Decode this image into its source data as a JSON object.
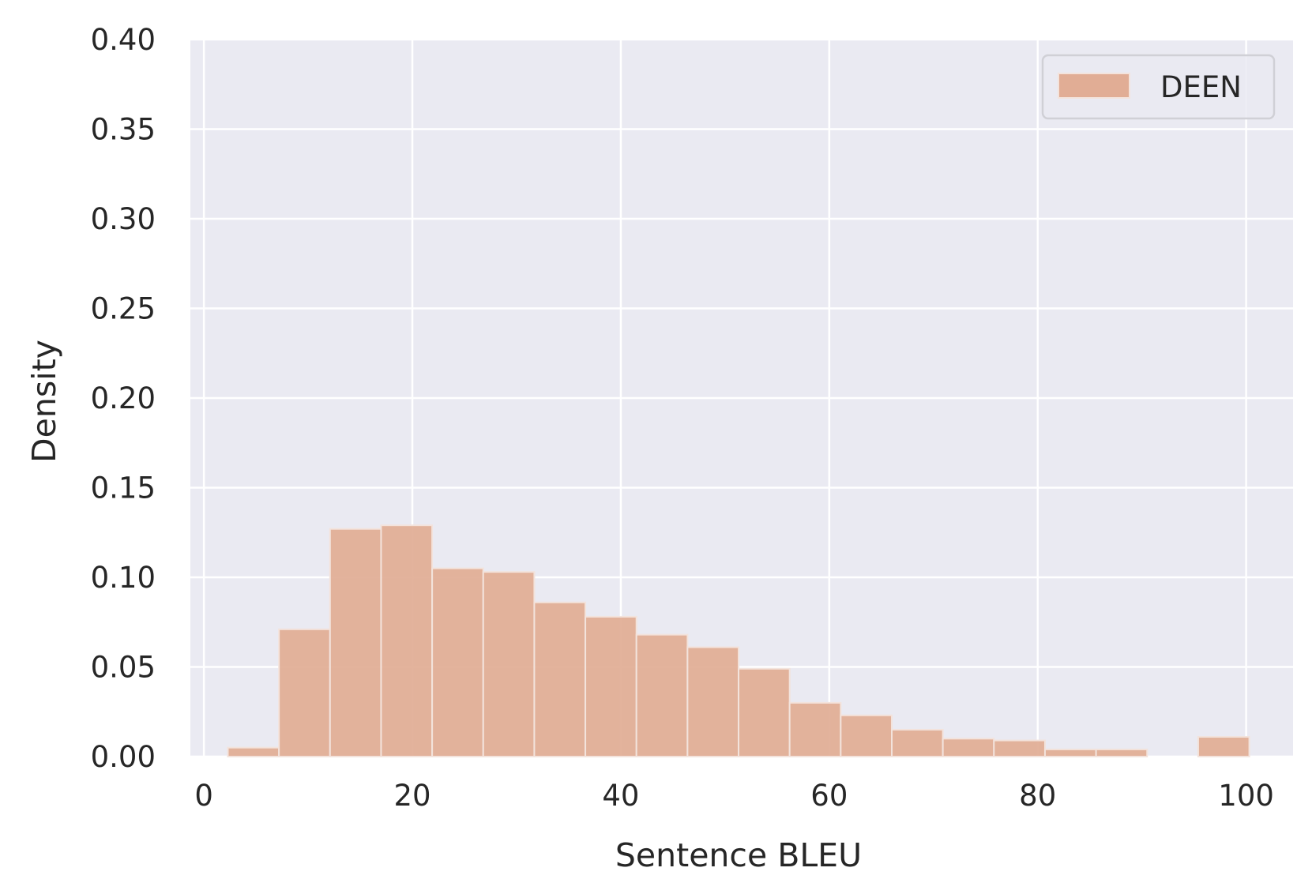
{
  "chart_data": {
    "type": "bar",
    "subtype": "histogram",
    "xlabel": "Sentence BLEU",
    "ylabel": "Density",
    "xlim": [
      -1.3,
      104.5
    ],
    "ylim": [
      0,
      0.4
    ],
    "xticks": [
      0,
      20,
      40,
      60,
      80,
      100
    ],
    "yticks": [
      0,
      0.05,
      0.1,
      0.15,
      0.2,
      0.25,
      0.3,
      0.35,
      0.4
    ],
    "xtick_labels": [
      "0",
      "20",
      "40",
      "60",
      "80",
      "100"
    ],
    "ytick_labels": [
      "0.00",
      "0.05",
      "0.10",
      "0.15",
      "0.20",
      "0.25",
      "0.30",
      "0.35",
      "0.40"
    ],
    "grid": true,
    "background": "#eaeaf2",
    "legend": {
      "position": "top-right",
      "entries": [
        "DEEN"
      ]
    },
    "series": [
      {
        "name": "DEEN",
        "color": "#e1ad95",
        "bins": [
          {
            "x0": 2.3,
            "x1": 7.2,
            "value": 0.005
          },
          {
            "x0": 7.2,
            "x1": 12.1,
            "value": 0.071
          },
          {
            "x0": 12.1,
            "x1": 17.0,
            "value": 0.127
          },
          {
            "x0": 17.0,
            "x1": 21.9,
            "value": 0.129
          },
          {
            "x0": 21.9,
            "x1": 26.8,
            "value": 0.105
          },
          {
            "x0": 26.8,
            "x1": 31.7,
            "value": 0.103
          },
          {
            "x0": 31.7,
            "x1": 36.6,
            "value": 0.086
          },
          {
            "x0": 36.6,
            "x1": 41.5,
            "value": 0.078
          },
          {
            "x0": 41.5,
            "x1": 46.4,
            "value": 0.068
          },
          {
            "x0": 46.4,
            "x1": 51.3,
            "value": 0.061
          },
          {
            "x0": 51.3,
            "x1": 56.2,
            "value": 0.049
          },
          {
            "x0": 56.2,
            "x1": 61.1,
            "value": 0.03
          },
          {
            "x0": 61.1,
            "x1": 66.0,
            "value": 0.023
          },
          {
            "x0": 66.0,
            "x1": 70.9,
            "value": 0.015
          },
          {
            "x0": 70.9,
            "x1": 75.8,
            "value": 0.01
          },
          {
            "x0": 75.8,
            "x1": 80.7,
            "value": 0.009
          },
          {
            "x0": 80.7,
            "x1": 85.6,
            "value": 0.004
          },
          {
            "x0": 85.6,
            "x1": 90.5,
            "value": 0.004
          },
          {
            "x0": 90.5,
            "x1": 95.4,
            "value": 0.0
          },
          {
            "x0": 95.4,
            "x1": 100.3,
            "value": 0.011
          }
        ]
      }
    ]
  }
}
